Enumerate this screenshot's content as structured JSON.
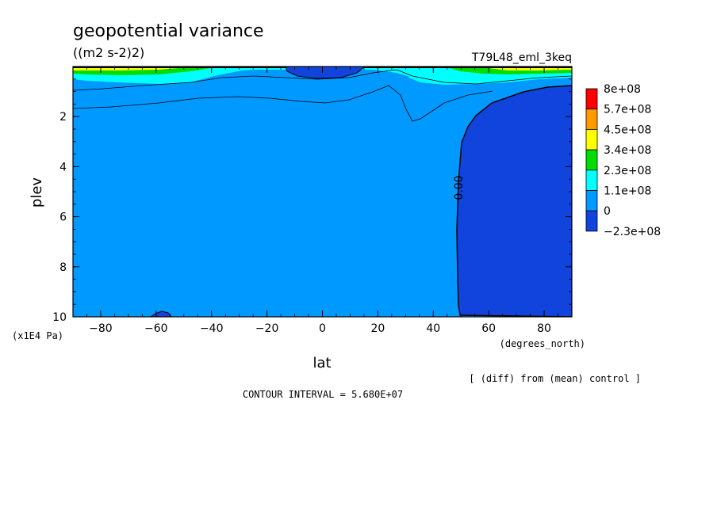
{
  "chart_data": {
    "type": "heatmap",
    "title": "geopotential variance",
    "units": "((m2 s-2)2)",
    "run_label": "T79L48_eml_3keq",
    "xlabel": "lat",
    "x_units": "(degrees_north)",
    "ylabel": "plev",
    "y_units": "(x1E4 Pa)",
    "xlim": [
      -90,
      90
    ],
    "ylim": [
      10,
      0
    ],
    "x_ticks": [
      "-80",
      "-60",
      "-40",
      "-20",
      "0",
      "20",
      "40",
      "60",
      "80"
    ],
    "y_ticks": [
      "2",
      "4",
      "6",
      "8",
      "10"
    ],
    "contour_label": "0.00",
    "legend": {
      "labels": [
        "8e+08",
        "5.7e+08",
        "4.5e+08",
        "3.4e+08",
        "2.3e+08",
        "1.1e+08",
        "0",
        "-2.3e+08"
      ],
      "colors": [
        "#ff0000",
        "#ff9900",
        "#ffff00",
        "#00dd00",
        "#00ffff",
        "#0099ff",
        "#1144dd"
      ]
    },
    "regions": {
      "negative_region": "#1144dd",
      "base_region": "#0099ff",
      "positive_regions": "#00ffff",
      "upper_layers": [
        "#00dd00",
        "#ffff00",
        "#ff9900",
        "#000000"
      ]
    }
  },
  "footer": {
    "diff_note": "[ (diff) from (mean) control ]",
    "contour_interval": "CONTOUR INTERVAL = 5.680E+07"
  }
}
